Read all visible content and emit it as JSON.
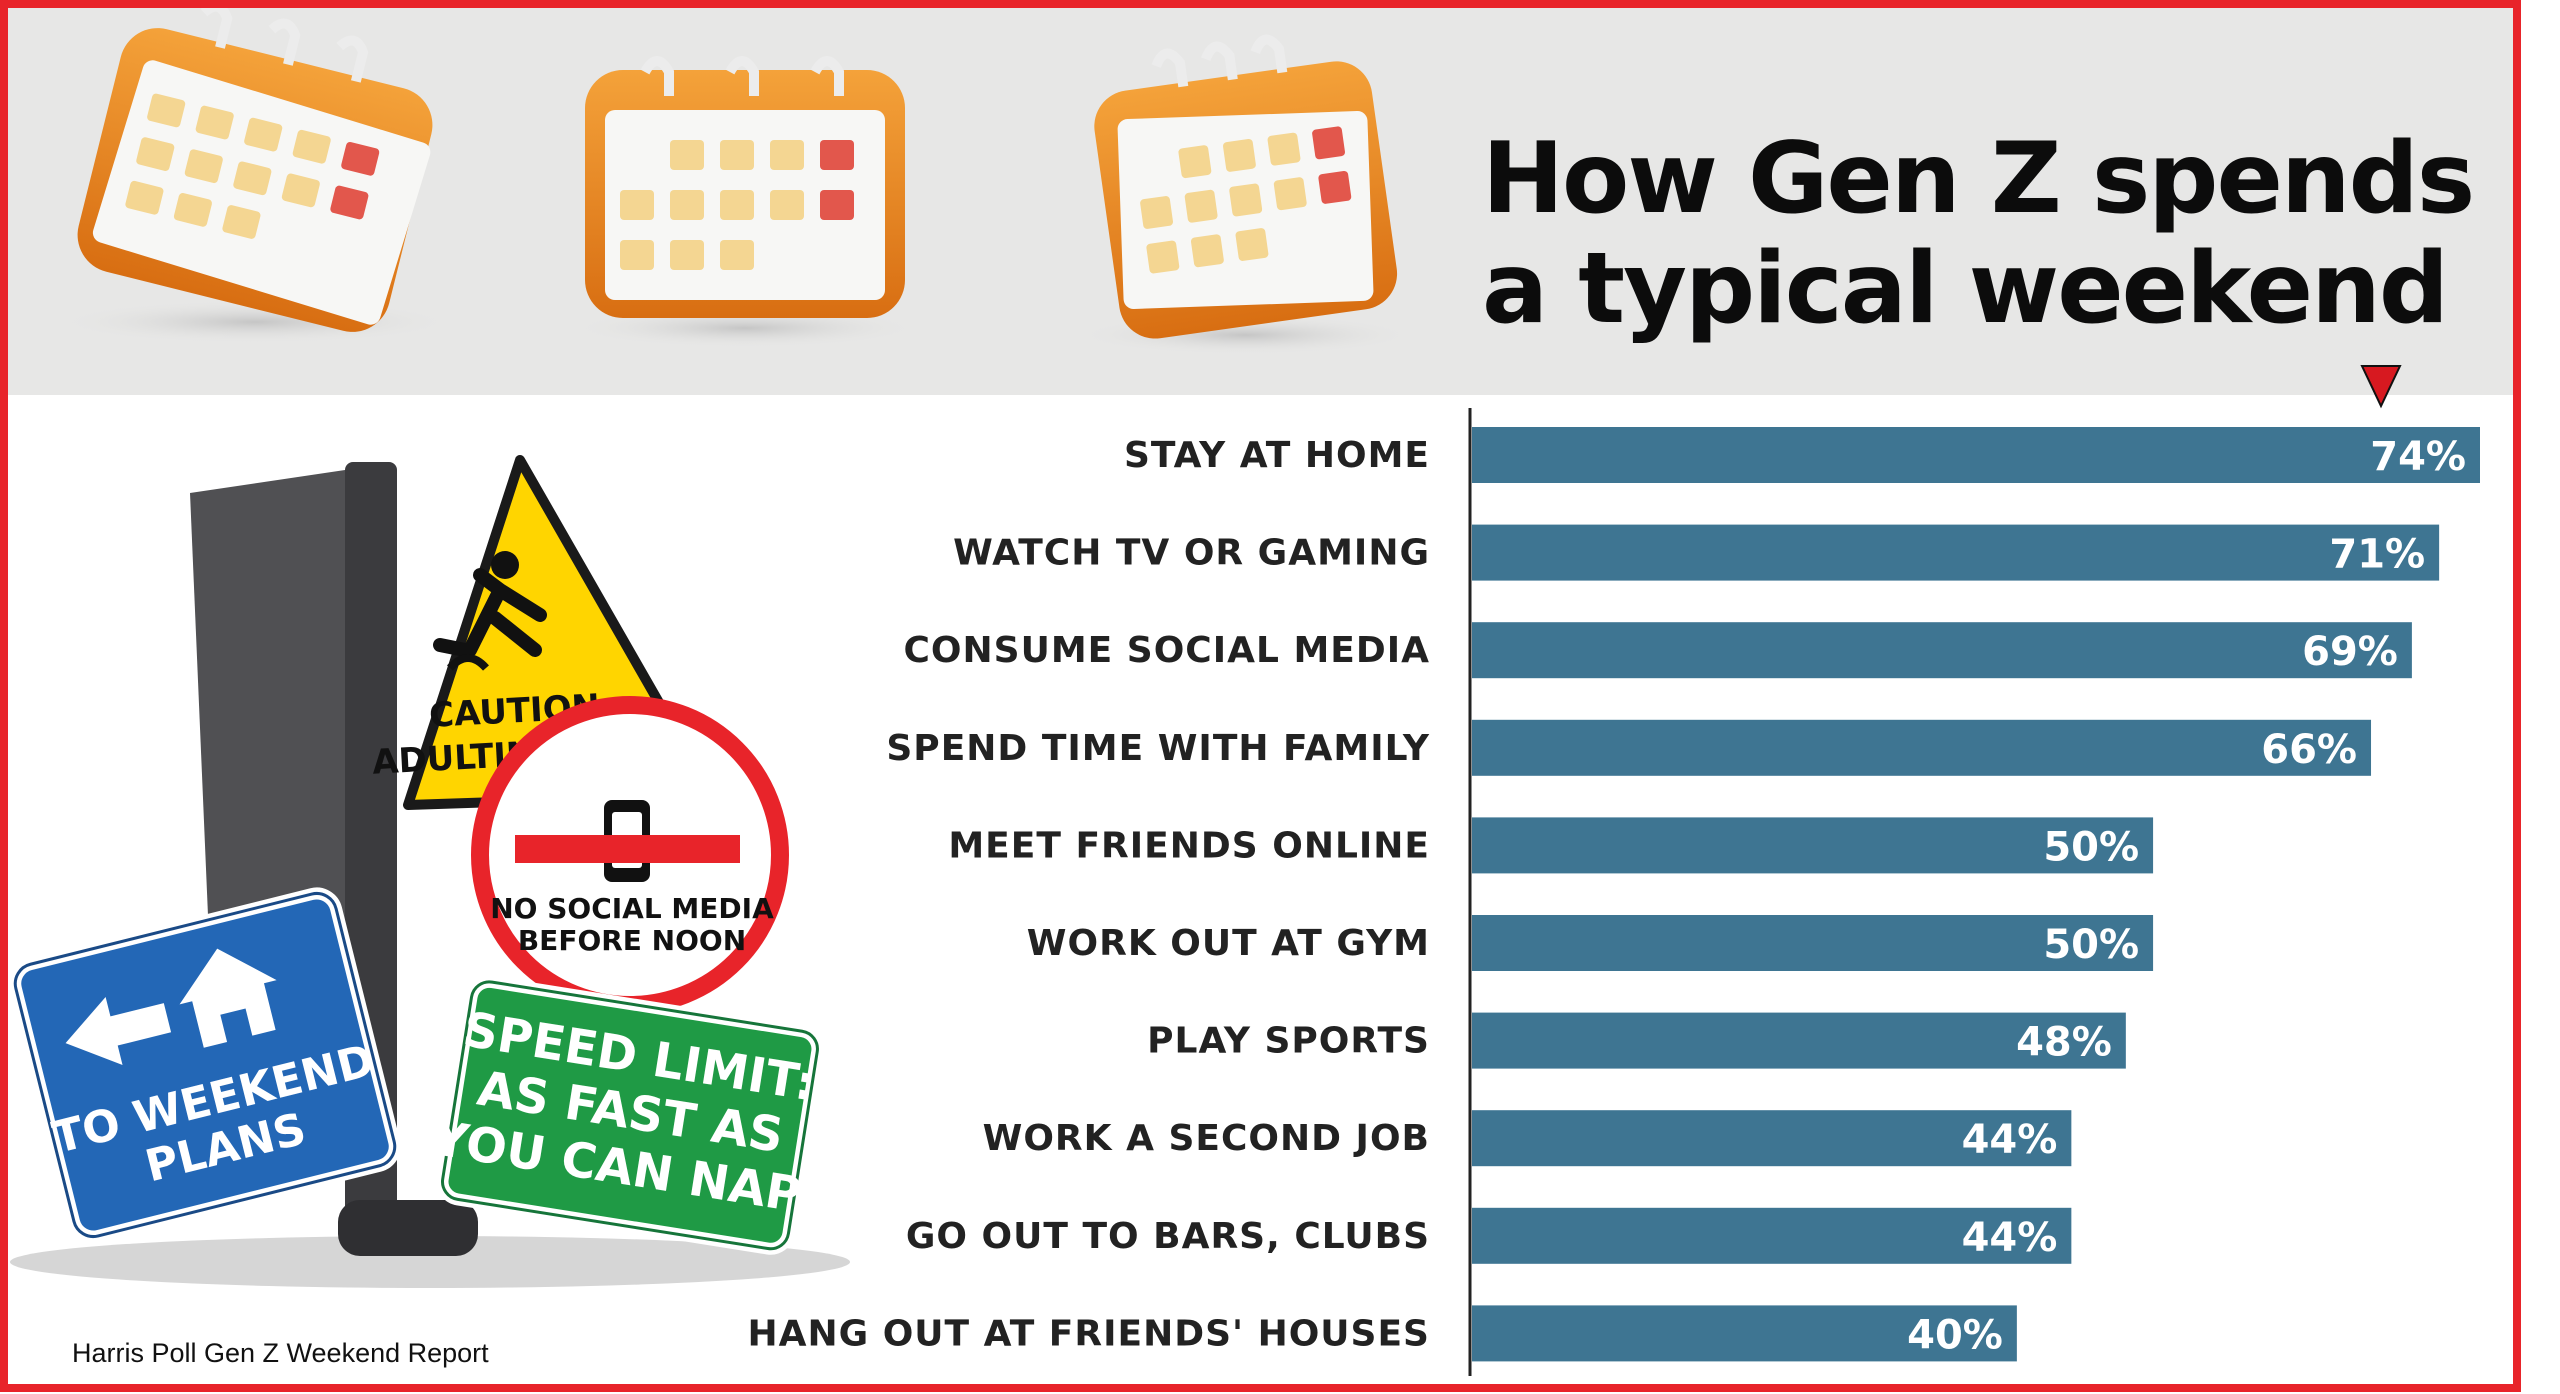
{
  "header": {
    "title_line1": "How Gen Z spends",
    "title_line2": "a typical weekend"
  },
  "illustration": {
    "caution_line1": "CAUTION:",
    "caution_line2": "ADULTING AHEAD",
    "no_social_line1": "NO SOCIAL MEDIA",
    "no_social_line2": "BEFORE NOON",
    "weekend_line1": "TO WEEKEND",
    "weekend_line2": "PLANS",
    "speed_line1": "SPEED LIMIT:",
    "speed_line2": "AS FAST AS",
    "speed_line3": "YOU CAN NAP."
  },
  "source": "Harris Poll Gen Z Weekend Report",
  "colors": {
    "bar": "#3e7592",
    "frame": "#e8242a",
    "header_bg": "#e7e7e6",
    "marker": "#d71920"
  },
  "chart_data": {
    "type": "bar",
    "orientation": "horizontal",
    "title": "How Gen Z spends a typical weekend",
    "xlim": [
      0,
      74
    ],
    "grid": false,
    "value_suffix": "%",
    "categories": [
      "STAY AT HOME",
      "WATCH TV OR GAMING",
      "CONSUME SOCIAL MEDIA",
      "SPEND TIME WITH FAMILY",
      "MEET FRIENDS ONLINE",
      "WORK OUT AT GYM",
      "PLAY SPORTS",
      "WORK A SECOND JOB",
      "GO OUT TO BARS, CLUBS",
      "HANG OUT AT FRIENDS' HOUSES"
    ],
    "values": [
      74,
      71,
      69,
      66,
      50,
      50,
      48,
      44,
      44,
      40
    ],
    "value_labels": [
      "74%",
      "71%",
      "69%",
      "66%",
      "50%",
      "50%",
      "48%",
      "44%",
      "44%",
      "40%"
    ]
  }
}
